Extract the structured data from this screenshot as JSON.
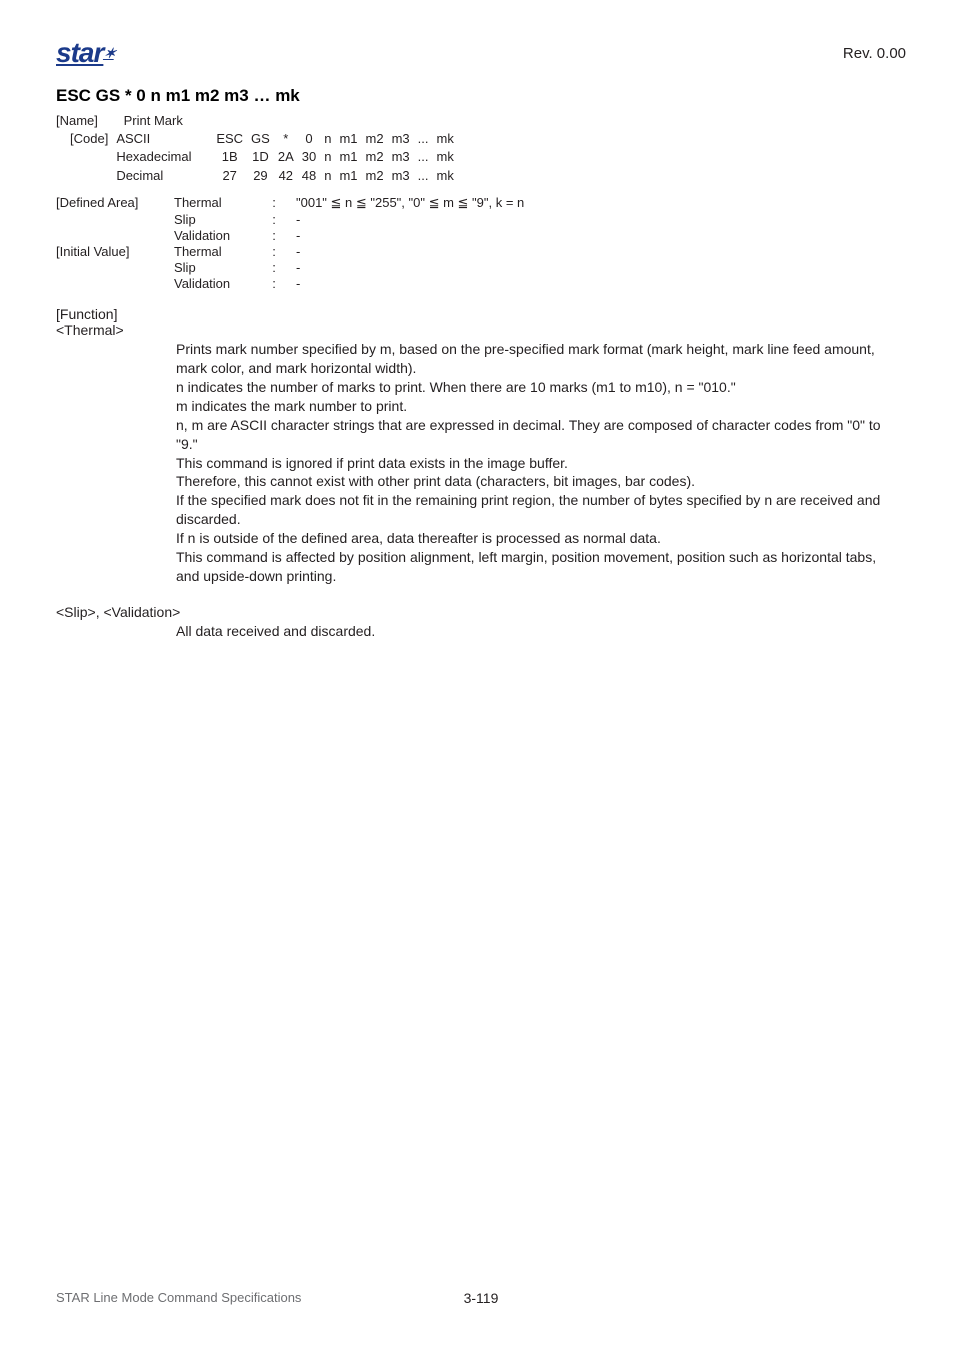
{
  "header": {
    "logo_main": "star",
    "logo_sup": "✶",
    "rev": "Rev. 0.00"
  },
  "title": "ESC GS * 0 n m1 m2 m3 … mk",
  "meta": {
    "name_label": "[Name]",
    "name_value": "Print Mark",
    "code_label": "[Code]"
  },
  "code_table": {
    "lines": [
      {
        "label": "ASCII",
        "c": [
          "ESC",
          "GS",
          "*",
          "0",
          "n",
          "m1",
          "m2",
          "m3",
          "...",
          "mk"
        ]
      },
      {
        "label": "Hexadecimal",
        "c": [
          "1B",
          "1D",
          "2A",
          "30",
          "n",
          "m1",
          "m2",
          "m3",
          "...",
          "mk"
        ]
      },
      {
        "label": "Decimal",
        "c": [
          "27",
          "29",
          "42",
          "48",
          "n",
          "m1",
          "m2",
          "m3",
          "...",
          "mk"
        ]
      }
    ]
  },
  "defined_area": {
    "label": "[Defined Area]",
    "rows": [
      {
        "mode": "Thermal",
        "val": "\"001\" ≦ n ≦ \"255\",  \"0\" ≦ m ≦ \"9\",  k = n"
      },
      {
        "mode": "Slip",
        "val": "-"
      },
      {
        "mode": "Validation",
        "val": "-"
      }
    ]
  },
  "initial_value": {
    "label": "[Initial Value]",
    "rows": [
      {
        "mode": "Thermal",
        "val": "-"
      },
      {
        "mode": "Slip",
        "val": "-"
      },
      {
        "mode": "Validation",
        "val": "-"
      }
    ]
  },
  "function": {
    "label": "[Function]",
    "thermal_label": "<Thermal>",
    "paras": [
      "Prints mark number specified by m, based on the pre-specified mark format (mark height, mark line feed amount, mark color, and mark horizontal width).",
      "n indicates the number of marks to print. When there are 10 marks (m1 to m10), n = \"010.\"",
      "m indicates the mark number to print.",
      "n, m are ASCII character strings that are expressed in decimal. They are composed of character codes from \"0\" to \"9.\"",
      "This command is ignored if print data exists in the image buffer.",
      "Therefore, this cannot exist with other print data (characters, bit images, bar codes).",
      "If the specified mark does not fit in the remaining print region, the number of bytes specified by n are received and discarded.",
      "If n is outside of the defined area, data thereafter is processed as normal data.",
      "This command is affected by position alignment, left margin, position movement, position such as horizontal tabs, and upside-down printing."
    ],
    "slip_label": "<Slip>, <Validation>",
    "slip_para": "All data received and discarded."
  },
  "footer": {
    "left": "STAR Line Mode Command Specifications",
    "center": "3-119"
  }
}
